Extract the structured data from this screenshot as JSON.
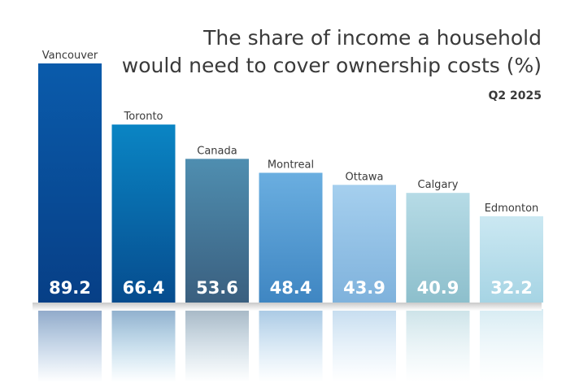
{
  "chart_data": {
    "type": "bar",
    "title_lines": [
      "The share of income a household",
      "would need to cover ownership costs (%)"
    ],
    "subtitle": "Q2 2025",
    "categories": [
      "Vancouver",
      "Toronto",
      "Canada",
      "Montreal",
      "Ottawa",
      "Calgary",
      "Edmonton"
    ],
    "values": [
      89.2,
      66.4,
      53.6,
      48.4,
      43.9,
      40.9,
      32.2
    ],
    "colors": [
      [
        "#0a5bab",
        "#073f86"
      ],
      [
        "#0a85c4",
        "#064c8e"
      ],
      [
        "#4f8eb0",
        "#3a5f7f"
      ],
      [
        "#6aaee0",
        "#3f86c2"
      ],
      [
        "#a5cfee",
        "#7fb2dc"
      ],
      [
        "#b6dbe6",
        "#8dbfcc"
      ],
      [
        "#cbe8f2",
        "#a6d4e4"
      ]
    ],
    "ylim": [
      0,
      100
    ],
    "grid": false,
    "legend": "none"
  }
}
